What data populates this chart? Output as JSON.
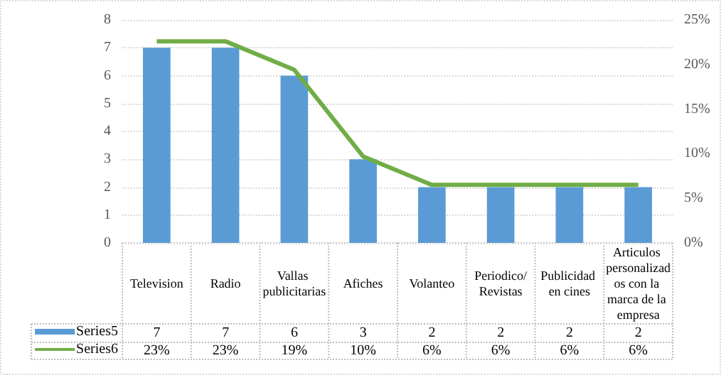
{
  "chart_data": {
    "type": "bar",
    "categories": [
      "Television",
      "Radio",
      "Vallas publicitarias",
      "Afiches",
      "Volanteo",
      "Periodico/Revistas",
      "Publicidad en cines",
      "Articulos personalizados con la marca de la empresa"
    ],
    "series": [
      {
        "name": "Series5",
        "color": "#5b9bd5",
        "values": [
          7,
          7,
          6,
          3,
          2,
          2,
          2,
          2
        ],
        "value_labels": [
          "7",
          "7",
          "6",
          "3",
          "2",
          "2",
          "2",
          "2"
        ]
      },
      {
        "name": "Series6",
        "type": "line",
        "axis": "y2",
        "color": "#70ad47",
        "values": [
          22.6,
          22.6,
          19.4,
          9.7,
          6.5,
          6.5,
          6.5,
          6.5
        ],
        "value_labels": [
          "23%",
          "23%",
          "19%",
          "10%",
          "6%",
          "6%",
          "6%",
          "6%"
        ]
      }
    ],
    "ylim": [
      0,
      8
    ],
    "yticks": [
      0,
      1,
      2,
      3,
      4,
      5,
      6,
      7,
      8
    ],
    "y2lim": [
      0,
      25
    ],
    "y2ticks": [
      {
        "value": 0,
        "label": "0%"
      },
      {
        "value": 5,
        "label": "5%"
      },
      {
        "value": 10,
        "label": "10%"
      },
      {
        "value": 15,
        "label": "15%"
      },
      {
        "value": 20,
        "label": "20%"
      },
      {
        "value": 25,
        "label": "25%"
      }
    ],
    "grid": "y",
    "legend": "bottom",
    "marker": "none"
  }
}
